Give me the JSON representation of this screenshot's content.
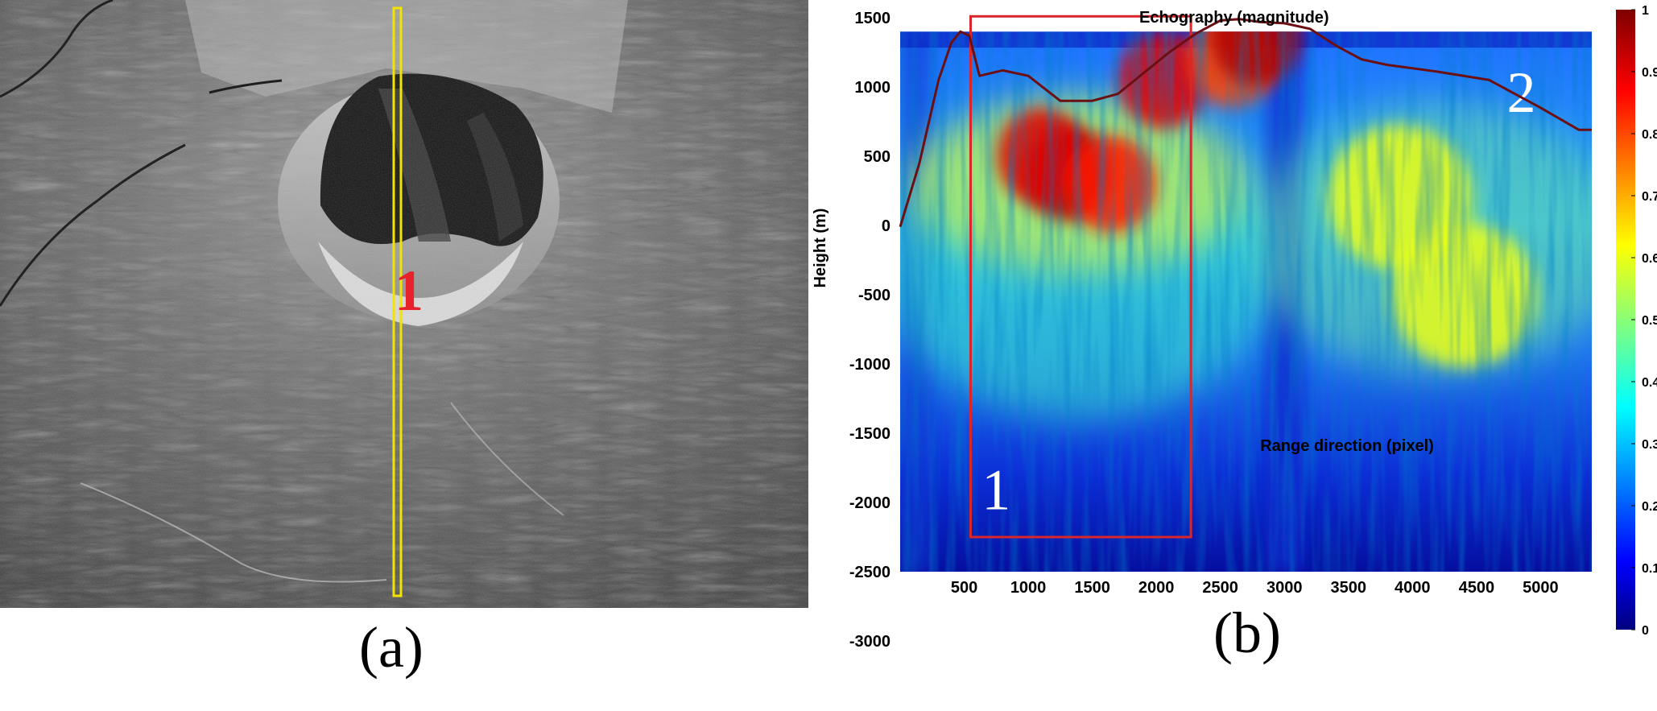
{
  "panel_a": {
    "caption": "(a)",
    "marker_label": "1",
    "highlight_color": "#f2e400",
    "marker_color": "#e8222a"
  },
  "panel_b": {
    "caption": "(b)",
    "region_labels": [
      "1",
      "2"
    ],
    "box_color": "#d9262b",
    "profile_color": "#6b0f12"
  },
  "chart_data": {
    "type": "heatmap",
    "title": "Echography (magnitude)",
    "xlabel": "Range direction (pixel)",
    "ylabel": "Height (m)",
    "x_ticks": [
      500,
      1000,
      1500,
      2000,
      2500,
      3000,
      3500,
      4000,
      4500,
      5000
    ],
    "y_ticks": [
      1500,
      1000,
      500,
      0,
      -500,
      -1000,
      -1500,
      -2000,
      -2500,
      -3000
    ],
    "xlim": [
      0,
      5400
    ],
    "ylim": [
      -2500,
      1400
    ],
    "colorbar": {
      "ticks": [
        "1",
        "0.9",
        "0.8",
        "0.7",
        "0.6",
        "0.5",
        "0.4",
        "0.3",
        "0.2",
        "0.1",
        "0"
      ],
      "colormap": "jet",
      "range": [
        0,
        1
      ]
    },
    "highlight_box": {
      "x_range": [
        550,
        2270
      ],
      "y_range": [
        -2250,
        1510
      ],
      "label": "1"
    },
    "surface_profile": {
      "x": [
        0,
        150,
        300,
        400,
        470,
        540,
        620,
        800,
        1000,
        1250,
        1500,
        1700,
        1900,
        2100,
        2300,
        2500,
        2650,
        2800,
        3000,
        3200,
        3400,
        3600,
        3800,
        4200,
        4600,
        5000,
        5300,
        5400
      ],
      "y": [
        -10,
        450,
        1050,
        1320,
        1400,
        1370,
        1080,
        1120,
        1080,
        900,
        900,
        950,
        1100,
        1250,
        1380,
        1480,
        1490,
        1470,
        1460,
        1420,
        1300,
        1200,
        1160,
        1110,
        1050,
        850,
        690,
        690
      ]
    },
    "hotspots": [
      {
        "x": 1300,
        "y": 380,
        "v": 0.95
      },
      {
        "x": 1100,
        "y": 500,
        "v": 0.9
      },
      {
        "x": 1650,
        "y": 300,
        "v": 0.85
      },
      {
        "x": 2050,
        "y": 1050,
        "v": 0.9
      },
      {
        "x": 2600,
        "y": 1200,
        "v": 0.8
      },
      {
        "x": 2780,
        "y": 1360,
        "v": 0.95
      },
      {
        "x": 3900,
        "y": 200,
        "v": 0.6
      },
      {
        "x": 4400,
        "y": -500,
        "v": 0.6
      }
    ]
  }
}
